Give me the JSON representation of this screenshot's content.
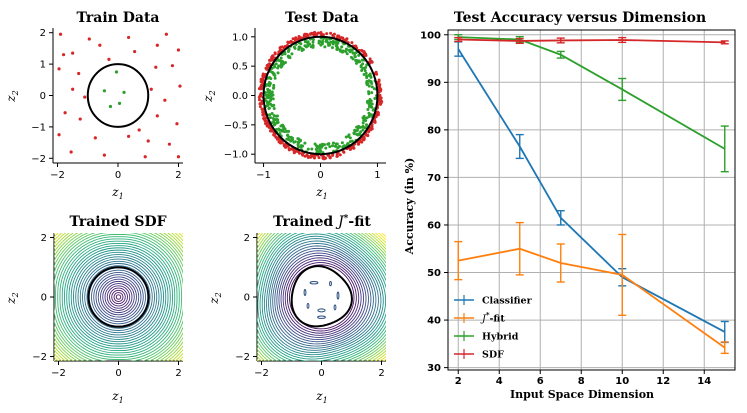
{
  "figure": {
    "colors": {
      "classifier": "#1f77b4",
      "jstar": "#ff7f0e",
      "hybrid": "#2ca02c",
      "sdf": "#d62728",
      "grid": "#b0b0b0"
    }
  },
  "chart_data": [
    {
      "id": "train",
      "type": "scatter",
      "title": "Train Data",
      "xlabel": "z",
      "xlabel_sub": "1",
      "ylabel": "z",
      "ylabel_sub": "2",
      "xlim": [
        -2.15,
        2.15
      ],
      "ylim": [
        -2.15,
        2.15
      ],
      "xticks": [
        -2,
        0,
        2
      ],
      "yticks": [
        -2,
        -1,
        0,
        1,
        2
      ],
      "circle_radius": 1,
      "inside_points": [
        [
          -0.05,
          0.75
        ],
        [
          -0.45,
          0.15
        ],
        [
          0.2,
          0.1
        ],
        [
          0.05,
          -0.25
        ],
        [
          -0.25,
          -0.35
        ]
      ],
      "outside_points": [
        [
          -1.9,
          1.95
        ],
        [
          -1.8,
          1.3
        ],
        [
          -1.5,
          1.35
        ],
        [
          -0.95,
          1.8
        ],
        [
          -0.6,
          1.6
        ],
        [
          0.35,
          1.85
        ],
        [
          0.55,
          1.4
        ],
        [
          1.3,
          1.6
        ],
        [
          1.6,
          1.95
        ],
        [
          2.0,
          1.45
        ],
        [
          -1.95,
          0.85
        ],
        [
          -1.3,
          0.7
        ],
        [
          1.25,
          0.9
        ],
        [
          1.8,
          0.95
        ],
        [
          2.05,
          0.3
        ],
        [
          -1.5,
          0.2
        ],
        [
          -1.1,
          -0.05
        ],
        [
          1.1,
          0.2
        ],
        [
          1.55,
          -0.15
        ],
        [
          -1.75,
          -0.55
        ],
        [
          -1.25,
          -0.75
        ],
        [
          1.3,
          -0.65
        ],
        [
          1.95,
          -0.9
        ],
        [
          -1.95,
          -1.25
        ],
        [
          -0.75,
          -1.35
        ],
        [
          0.35,
          -1.3
        ],
        [
          1.0,
          -1.45
        ],
        [
          1.7,
          -1.55
        ],
        [
          -1.55,
          -1.8
        ],
        [
          -0.45,
          -1.9
        ],
        [
          0.9,
          -1.95
        ],
        [
          2.0,
          -1.95
        ],
        [
          -0.3,
          1.15
        ],
        [
          0.7,
          -1.1
        ]
      ]
    },
    {
      "id": "test",
      "type": "scatter",
      "title": "Test Data",
      "xlabel": "z",
      "xlabel_sub": "1",
      "ylabel": "z",
      "ylabel_sub": "2",
      "xlim": [
        -1.15,
        1.15
      ],
      "ylim": [
        -1.15,
        1.15
      ],
      "xticks": [
        -1,
        0,
        1
      ],
      "yticks": [
        -1.0,
        -0.5,
        0.0,
        0.5,
        1.0
      ],
      "ytick_labels": [
        "-1.0",
        "-0.5",
        "0.0",
        "0.5",
        "1.0"
      ],
      "circle_radius": 1,
      "inside_band": [
        0.83,
        0.99
      ],
      "outside_band": [
        1.01,
        1.08
      ],
      "point_count_each": 420
    },
    {
      "id": "sdf",
      "type": "contour",
      "title": "Trained SDF",
      "xlabel": "z",
      "xlabel_sub": "1",
      "ylabel": "z",
      "ylabel_sub": "2",
      "xlim": [
        -2.15,
        2.15
      ],
      "ylim": [
        -2.15,
        2.15
      ],
      "xticks": [
        -2,
        0,
        2
      ],
      "yticks": [
        -2,
        0,
        2
      ],
      "level_spacing": 0.075,
      "zero_level_radius": 1
    },
    {
      "id": "jfit",
      "type": "contour",
      "title": "Trained J*-fit",
      "title_main": "Trained ",
      "title_sym": "J",
      "title_sup": "*",
      "title_tail": "-fit",
      "xlabel": "z",
      "xlabel_sub": "1",
      "ylabel": "z",
      "ylabel_sub": "2",
      "xlim": [
        -2.15,
        2.15
      ],
      "ylim": [
        -2.15,
        2.15
      ],
      "xticks": [
        -2,
        0,
        2
      ],
      "yticks": [
        -2,
        0,
        2
      ],
      "level_spacing": 0.075,
      "zero_level_radius": 1
    },
    {
      "id": "accuracy",
      "type": "line",
      "title": "Test Accuracy versus Dimension",
      "xlabel": "Input Space Dimension",
      "ylabel": "Accuracy (in %)",
      "xlim": [
        1.5,
        15.5
      ],
      "ylim": [
        29.5,
        101
      ],
      "xticks": [
        2,
        4,
        6,
        8,
        10,
        12,
        14
      ],
      "yticks": [
        30,
        40,
        50,
        60,
        70,
        80,
        90,
        100
      ],
      "grid": true,
      "legend_position": "lower-left",
      "x": [
        2,
        5,
        7,
        10,
        15
      ],
      "series": [
        {
          "key": "classifier",
          "name": "Classifier",
          "sym": "",
          "sup": "",
          "values": [
            97,
            76.5,
            61.5,
            49,
            37.5
          ],
          "errors": [
            1.5,
            2.5,
            1.5,
            1.8,
            2.2
          ]
        },
        {
          "key": "jstar",
          "name": "J*-fit",
          "sym": "J",
          "sup": "*",
          "tail": "-fit",
          "values": [
            52.5,
            55,
            52,
            49.5,
            34.2
          ],
          "errors": [
            4,
            5.5,
            4,
            8.5,
            1.2
          ]
        },
        {
          "key": "hybrid",
          "name": "Hybrid",
          "sym": "",
          "sup": "",
          "values": [
            99.5,
            99,
            95.8,
            88.5,
            76
          ],
          "errors": [
            0.5,
            0.6,
            0.7,
            2.3,
            4.8
          ]
        },
        {
          "key": "sdf",
          "name": "SDF",
          "sym": "",
          "sup": "",
          "values": [
            99,
            98.7,
            98.8,
            98.9,
            98.4
          ],
          "errors": [
            0.4,
            0.5,
            0.5,
            0.5,
            0.3
          ]
        }
      ]
    }
  ]
}
